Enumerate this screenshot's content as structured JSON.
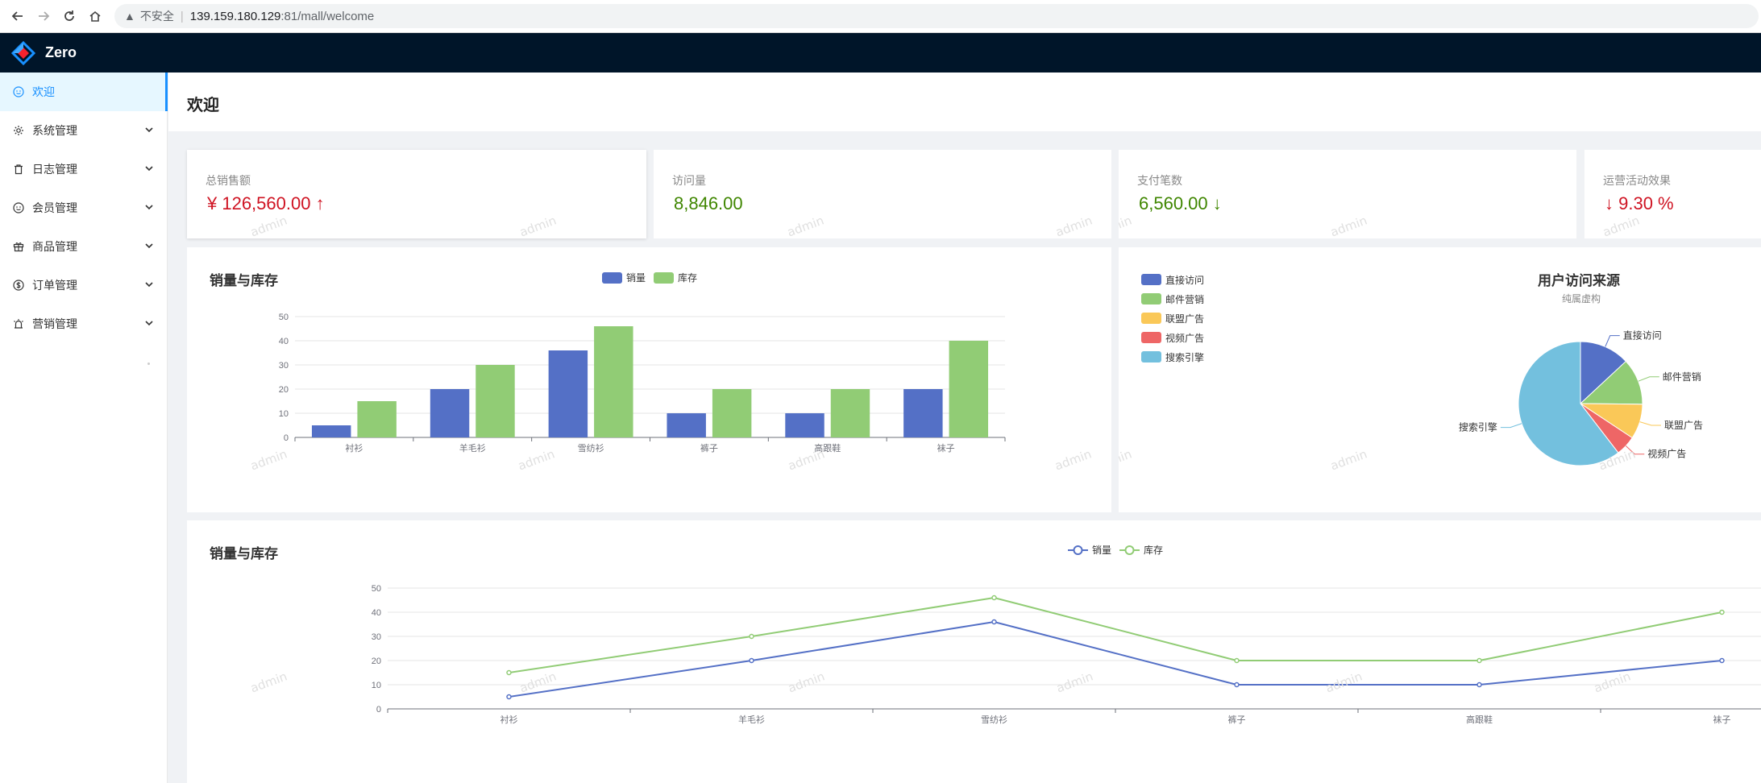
{
  "browser": {
    "insecure_label": "不安全",
    "url_host": "139.159.180.129",
    "url_path": ":81/mall/welcome"
  },
  "app": {
    "name": "Zero"
  },
  "sidebar": {
    "items": [
      {
        "label": "欢迎",
        "icon": "smile-icon",
        "active": true
      },
      {
        "label": "系统管理",
        "icon": "gear-icon"
      },
      {
        "label": "日志管理",
        "icon": "trash-icon"
      },
      {
        "label": "会员管理",
        "icon": "smile-icon"
      },
      {
        "label": "商品管理",
        "icon": "gift-icon"
      },
      {
        "label": "订单管理",
        "icon": "dollar-icon"
      },
      {
        "label": "营销管理",
        "icon": "alarm-icon"
      }
    ]
  },
  "page": {
    "title": "欢迎"
  },
  "stats": [
    {
      "label": "总销售额",
      "value": "¥ 126,560.00",
      "trend": "up",
      "color": "#cf1322"
    },
    {
      "label": "访问量",
      "value": "8,846.00",
      "trend": "",
      "color": "#3f8600"
    },
    {
      "label": "支付笔数",
      "value": "6,560.00",
      "trend": "down",
      "color": "#3f8600"
    },
    {
      "label": "运营活动效果",
      "value": "9.30 %",
      "trend": "down-prefix",
      "color": "#cf1322"
    }
  ],
  "watermark": "admin",
  "chart_data": [
    {
      "type": "bar",
      "title": "销量与库存",
      "categories": [
        "衬衫",
        "羊毛衫",
        "雪纺衫",
        "裤子",
        "高跟鞋",
        "袜子"
      ],
      "series": [
        {
          "name": "销量",
          "values": [
            5,
            20,
            36,
            10,
            10,
            20
          ],
          "color": "#5470c6"
        },
        {
          "name": "库存",
          "values": [
            15,
            30,
            46,
            20,
            20,
            40
          ],
          "color": "#91cc75"
        }
      ],
      "ylim": [
        0,
        50
      ],
      "yticks": [
        0,
        10,
        20,
        30,
        40,
        50
      ],
      "legend": "top-center",
      "grid": true
    },
    {
      "type": "pie",
      "title": "用户访问来源",
      "subtitle": "纯属虚构",
      "slices": [
        {
          "name": "直接访问",
          "value": 335,
          "color": "#5470c6"
        },
        {
          "name": "邮件营销",
          "value": 310,
          "color": "#91cc75"
        },
        {
          "name": "联盟广告",
          "value": 234,
          "color": "#fac858"
        },
        {
          "name": "视频广告",
          "value": 135,
          "color": "#ee6666"
        },
        {
          "name": "搜索引擎",
          "value": 1548,
          "color": "#73c0de"
        }
      ],
      "legend": "top-left"
    },
    {
      "type": "line",
      "title": "销量与库存",
      "categories": [
        "衬衫",
        "羊毛衫",
        "雪纺衫",
        "裤子",
        "高跟鞋",
        "袜子"
      ],
      "series": [
        {
          "name": "销量",
          "values": [
            5,
            20,
            36,
            10,
            10,
            20
          ],
          "color": "#5470c6"
        },
        {
          "name": "库存",
          "values": [
            15,
            30,
            46,
            20,
            20,
            40
          ],
          "color": "#91cc75"
        }
      ],
      "ylim": [
        0,
        50
      ],
      "yticks": [
        0,
        10,
        20,
        30,
        40,
        50
      ],
      "legend": "top-center",
      "grid": true
    }
  ]
}
